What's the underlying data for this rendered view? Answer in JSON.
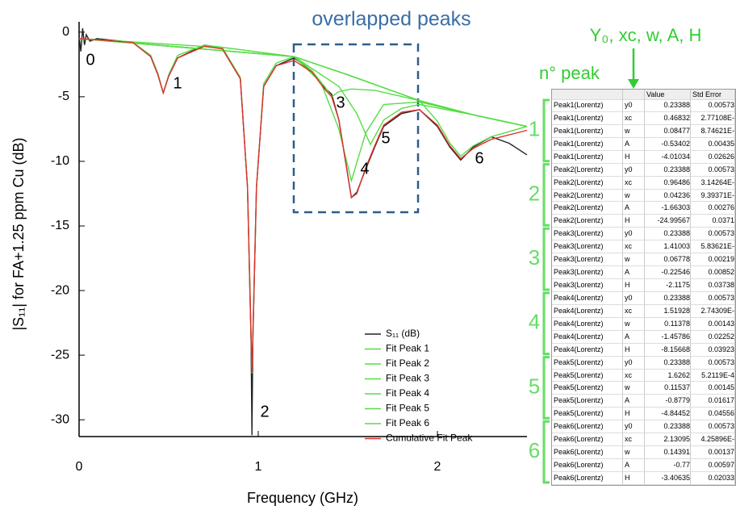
{
  "chart_data": {
    "type": "line",
    "annotations": [
      "overlapped peaks"
    ],
    "peak_labels": [
      "0",
      "1",
      "2",
      "3",
      "4",
      "5",
      "6"
    ],
    "xlabel": "Frequency (GHz)",
    "ylabel": "|S₁₁| for FA+1.25 ppm Cu (dB)",
    "xlim": [
      0,
      2.5
    ],
    "xticks": [
      0,
      1,
      2
    ],
    "ylim": [
      -31.3,
      0.8
    ],
    "yticks": [
      0,
      -5,
      -10,
      -15,
      -20,
      -25,
      -30
    ],
    "legend": "lower right",
    "series": [
      {
        "name": "S₁₁ (dB)",
        "color": "#222222",
        "x": [
          0,
          0.01,
          0.02,
          0.03,
          0.04,
          0.06,
          0.1,
          0.3,
          0.4,
          0.44,
          0.47,
          0.5,
          0.55,
          0.7,
          0.8,
          0.9,
          0.94,
          0.96,
          0.965,
          0.97,
          0.99,
          1.03,
          1.1,
          1.2,
          1.3,
          1.37,
          1.41,
          1.45,
          1.52,
          1.55,
          1.6,
          1.65,
          1.7,
          1.8,
          1.9,
          2.0,
          2.07,
          2.13,
          2.2,
          2.3,
          2.4,
          2.5
        ],
        "values": [
          -0.3,
          -1.5,
          0.3,
          -1.0,
          -0.2,
          -0.7,
          -0.5,
          -0.8,
          -1.9,
          -3.3,
          -4.7,
          -3.4,
          -2.0,
          -1.0,
          -1.3,
          -3.6,
          -12,
          -24,
          -31.2,
          -24,
          -12,
          -4.2,
          -2.6,
          -2.0,
          -3.0,
          -4.3,
          -4.8,
          -6.8,
          -12.8,
          -12.4,
          -10.6,
          -8.9,
          -7.3,
          -6.3,
          -6.0,
          -7.3,
          -8.9,
          -9.9,
          -8.9,
          -8.1,
          -8.6,
          -9.5
        ]
      },
      {
        "name": "Fit Peak 1",
        "color": "#55dd44",
        "x": [
          0,
          0.3,
          0.4,
          0.44,
          0.47,
          0.5,
          0.55,
          0.7,
          1.2,
          1.5,
          1.9,
          2.2,
          2.5
        ],
        "values": [
          -0.5,
          -0.8,
          -1.8,
          -3.2,
          -4.7,
          -3.3,
          -1.8,
          -1.0,
          -1.9,
          -3.3,
          -5.3,
          -6.4,
          -7.3
        ]
      },
      {
        "name": "Fit Peak 2",
        "color": "#55dd44",
        "x": [
          0,
          0.8,
          0.9,
          0.94,
          0.965,
          0.99,
          1.03,
          1.1,
          1.2,
          1.5,
          1.9,
          2.2,
          2.5
        ],
        "values": [
          -0.5,
          -1.2,
          -3.5,
          -12,
          -26.4,
          -12,
          -4,
          -2.4,
          -1.9,
          -3.3,
          -5.3,
          -6.4,
          -7.3
        ]
      },
      {
        "name": "Fit Peak 3",
        "color": "#55dd44",
        "x": [
          0,
          1.2,
          1.3,
          1.37,
          1.41,
          1.45,
          1.52,
          1.65,
          1.9,
          2.2,
          2.5
        ],
        "values": [
          -0.5,
          -1.9,
          -3.0,
          -4.2,
          -5.0,
          -4.6,
          -4.4,
          -4.5,
          -5.3,
          -6.4,
          -7.3
        ]
      },
      {
        "name": "Fit Peak 4",
        "color": "#55dd44",
        "x": [
          0,
          1.2,
          1.35,
          1.45,
          1.52,
          1.6,
          1.7,
          1.9,
          2.2,
          2.5
        ],
        "values": [
          -0.5,
          -1.9,
          -3.9,
          -7.5,
          -11.5,
          -7.8,
          -5.6,
          -5.4,
          -6.4,
          -7.3
        ]
      },
      {
        "name": "Fit Peak 5",
        "color": "#55dd44",
        "x": [
          0,
          1.2,
          1.45,
          1.55,
          1.626,
          1.7,
          1.8,
          1.9,
          2.2,
          2.5
        ],
        "values": [
          -0.5,
          -1.9,
          -4.2,
          -6.3,
          -8.7,
          -6.8,
          -5.9,
          -5.6,
          -6.4,
          -7.3
        ]
      },
      {
        "name": "Fit Peak 6",
        "color": "#55dd44",
        "x": [
          0,
          1.2,
          1.5,
          1.9,
          2.0,
          2.07,
          2.13,
          2.2,
          2.3,
          2.5
        ],
        "values": [
          -0.5,
          -1.9,
          -3.3,
          -5.3,
          -6.9,
          -8.6,
          -9.6,
          -8.8,
          -8.1,
          -7.3
        ]
      },
      {
        "name": "Cumulative Fit Peak",
        "color": "#e03030",
        "x": [
          0,
          0.3,
          0.4,
          0.44,
          0.47,
          0.5,
          0.55,
          0.7,
          0.8,
          0.9,
          0.94,
          0.965,
          0.99,
          1.03,
          1.1,
          1.2,
          1.3,
          1.37,
          1.41,
          1.45,
          1.52,
          1.55,
          1.6,
          1.65,
          1.7,
          1.8,
          1.9,
          2.0,
          2.07,
          2.13,
          2.2,
          2.3,
          2.5
        ],
        "values": [
          -0.5,
          -0.8,
          -1.9,
          -3.3,
          -4.7,
          -3.4,
          -2.0,
          -1.1,
          -1.3,
          -3.6,
          -12,
          -26.3,
          -12,
          -4.2,
          -2.6,
          -2.2,
          -3.1,
          -4.4,
          -5.0,
          -6.8,
          -12.8,
          -12.5,
          -10.5,
          -8.8,
          -7.2,
          -6.2,
          -6.0,
          -7.2,
          -8.8,
          -9.8,
          -9.0,
          -8.3,
          -7.6
        ]
      }
    ]
  },
  "param_header": "Y₀, xc, w, A, H",
  "peak_header": "n° peak",
  "table": {
    "columns": [
      "Value",
      "Std Error"
    ],
    "groups": [
      "1",
      "2",
      "3",
      "4",
      "5",
      "6"
    ],
    "rows": [
      [
        "Peak1(Lorentz)",
        "y0",
        "0.23388",
        "0.00573"
      ],
      [
        "Peak1(Lorentz)",
        "xc",
        "0.46832",
        "2.77108E-"
      ],
      [
        "Peak1(Lorentz)",
        "w",
        "0.08477",
        "8.74621E-"
      ],
      [
        "Peak1(Lorentz)",
        "A",
        "-0.53402",
        "0.00435"
      ],
      [
        "Peak1(Lorentz)",
        "H",
        "-4.01034",
        "0.02626"
      ],
      [
        "Peak2(Lorentz)",
        "y0",
        "0.23388",
        "0.00573"
      ],
      [
        "Peak2(Lorentz)",
        "xc",
        "0.96486",
        "3.14264E-"
      ],
      [
        "Peak2(Lorentz)",
        "w",
        "0.04236",
        "9.39371E-"
      ],
      [
        "Peak2(Lorentz)",
        "A",
        "-1.66303",
        "0.00276"
      ],
      [
        "Peak2(Lorentz)",
        "H",
        "-24.99567",
        "0.0371"
      ],
      [
        "Peak3(Lorentz)",
        "y0",
        "0.23388",
        "0.00573"
      ],
      [
        "Peak3(Lorentz)",
        "xc",
        "1.41003",
        "5.83621E-"
      ],
      [
        "Peak3(Lorentz)",
        "w",
        "0.06778",
        "0.00219"
      ],
      [
        "Peak3(Lorentz)",
        "A",
        "-0.22546",
        "0.00852"
      ],
      [
        "Peak3(Lorentz)",
        "H",
        "-2.1175",
        "0.03738"
      ],
      [
        "Peak4(Lorentz)",
        "y0",
        "0.23388",
        "0.00573"
      ],
      [
        "Peak4(Lorentz)",
        "xc",
        "1.51928",
        "2.74309E-"
      ],
      [
        "Peak4(Lorentz)",
        "w",
        "0.11378",
        "0.00143"
      ],
      [
        "Peak4(Lorentz)",
        "A",
        "-1.45786",
        "0.02252"
      ],
      [
        "Peak4(Lorentz)",
        "H",
        "-8.15668",
        "0.03923"
      ],
      [
        "Peak5(Lorentz)",
        "y0",
        "0.23388",
        "0.00573"
      ],
      [
        "Peak5(Lorentz)",
        "xc",
        "1.6262",
        "5.2119E-4"
      ],
      [
        "Peak5(Lorentz)",
        "w",
        "0.11537",
        "0.00145"
      ],
      [
        "Peak5(Lorentz)",
        "A",
        "-0.8779",
        "0.01617"
      ],
      [
        "Peak5(Lorentz)",
        "H",
        "-4.84452",
        "0.04556"
      ],
      [
        "Peak6(Lorentz)",
        "y0",
        "0.23388",
        "0.00573"
      ],
      [
        "Peak6(Lorentz)",
        "xc",
        "2.13095",
        "4.25896E-"
      ],
      [
        "Peak6(Lorentz)",
        "w",
        "0.14391",
        "0.00137"
      ],
      [
        "Peak6(Lorentz)",
        "A",
        "-0.77",
        "0.00597"
      ],
      [
        "Peak6(Lorentz)",
        "H",
        "-3.40635",
        "0.02033"
      ]
    ]
  }
}
